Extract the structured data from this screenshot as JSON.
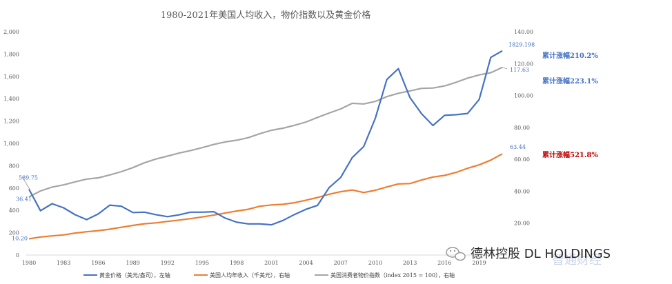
{
  "chart_data": {
    "type": "line",
    "title": "1980-2021年美国人均收入，物价指数以及黄金价格",
    "x": [
      1980,
      1981,
      1982,
      1983,
      1984,
      1985,
      1986,
      1987,
      1988,
      1989,
      1990,
      1991,
      1992,
      1993,
      1994,
      1995,
      1996,
      1997,
      1998,
      1999,
      2000,
      2001,
      2002,
      2003,
      2004,
      2005,
      2006,
      2007,
      2008,
      2009,
      2010,
      2011,
      2012,
      2013,
      2014,
      2015,
      2016,
      2017,
      2018,
      2019,
      2020,
      2021
    ],
    "x_tick_labels": [
      "1980",
      "1983",
      "1986",
      "1989",
      "1992",
      "1995",
      "1998",
      "2001",
      "2004",
      "2007",
      "2010",
      "2013",
      "2016",
      "2019"
    ],
    "x_tick_values": [
      1980,
      1983,
      1986,
      1989,
      1992,
      1995,
      1998,
      2001,
      2004,
      2007,
      2010,
      2013,
      2016,
      2019
    ],
    "left_axis": {
      "ylim": [
        0,
        2000
      ],
      "tick_labels": [
        "0",
        "200",
        "400",
        "600",
        "800",
        "1,000",
        "1,200",
        "1,400",
        "1,600",
        "1,800",
        "2,000"
      ],
      "tick_values": [
        0,
        200,
        400,
        600,
        800,
        1000,
        1200,
        1400,
        1600,
        1800,
        2000
      ]
    },
    "right_axis": {
      "ylim": [
        0,
        140
      ],
      "tick_labels": [
        "20.00",
        "40.00",
        "60.00",
        "80.00",
        "100.00",
        "120.00",
        "140.00"
      ],
      "tick_values": [
        20,
        40,
        60,
        80,
        100,
        120,
        140
      ]
    },
    "series": [
      {
        "name": "黄金价格（美元/盎司），左轴",
        "axis": "left",
        "color": "#4472C4",
        "values": [
          589.75,
          397,
          460,
          423,
          361,
          317,
          368,
          447,
          437,
          381,
          384,
          362,
          344,
          360,
          384,
          384,
          388,
          331,
          294,
          279,
          279,
          271,
          310,
          363,
          410,
          445,
          604,
          695,
          872,
          972,
          1225,
          1572,
          1669,
          1411,
          1266,
          1160,
          1251,
          1257,
          1268,
          1393,
          1770,
          1829.198
        ]
      },
      {
        "name": "美国人均年收入（千美元），右轴",
        "axis": "right",
        "color": "#ED7D31",
        "values": [
          10.2,
          11.3,
          12.0,
          12.6,
          13.8,
          14.6,
          15.3,
          16.2,
          17.4,
          18.6,
          19.6,
          20.2,
          21.1,
          21.9,
          22.8,
          23.9,
          25.0,
          26.3,
          27.6,
          28.7,
          30.6,
          31.4,
          31.8,
          32.8,
          34.4,
          36.1,
          38.1,
          39.7,
          40.8,
          39.2,
          40.6,
          42.7,
          44.6,
          44.8,
          47.0,
          48.9,
          49.9,
          51.8,
          54.4,
          56.5,
          59.5,
          63.44
        ]
      },
      {
        "name": "美国消费者物价指数（index 2015 = 100），右轴",
        "axis": "right",
        "color": "#A5A5A5",
        "values": [
          36.41,
          40.2,
          42.6,
          44.0,
          45.9,
          47.6,
          48.4,
          50.2,
          52.3,
          54.8,
          57.8,
          60.2,
          62.0,
          63.9,
          65.5,
          67.3,
          69.3,
          70.9,
          72.0,
          73.6,
          76.1,
          78.2,
          79.5,
          81.3,
          83.4,
          86.3,
          89.0,
          91.6,
          95.1,
          94.7,
          96.3,
          99.3,
          101.4,
          102.9,
          104.5,
          104.7,
          106.0,
          108.3,
          110.9,
          112.9,
          114.3,
          117.63
        ]
      }
    ],
    "data_labels": {
      "gold_start": "589.75",
      "gold_end": "1829.198",
      "cpi_start": "36.41",
      "cpi_end": "117.63",
      "income_start": "10.20",
      "income_end": "63.44"
    },
    "annotations": {
      "gold_growth": "累计涨幅210.2%",
      "cpi_growth": "累计涨幅223.1%",
      "income_growth": "累计涨幅521.8%"
    },
    "legend": [
      {
        "label": "黄金价格（美元/盎司），左轴",
        "color": "#4472C4"
      },
      {
        "label": "美国人均年收入（千美元），右轴",
        "color": "#ED7D31"
      },
      {
        "label": "美国消费者物价指数（index 2015 = 100），右轴",
        "color": "#A5A5A5"
      }
    ],
    "legend_position": "bottom"
  },
  "watermark": {
    "brand": "德林控股 DL HOLDINGS",
    "secondary": "智通财经"
  },
  "colors": {
    "gold": "#4472C4",
    "income": "#ED7D31",
    "cpi": "#A5A5A5",
    "income_growth_text": "#C00000",
    "blue_text": "#4472C4"
  }
}
